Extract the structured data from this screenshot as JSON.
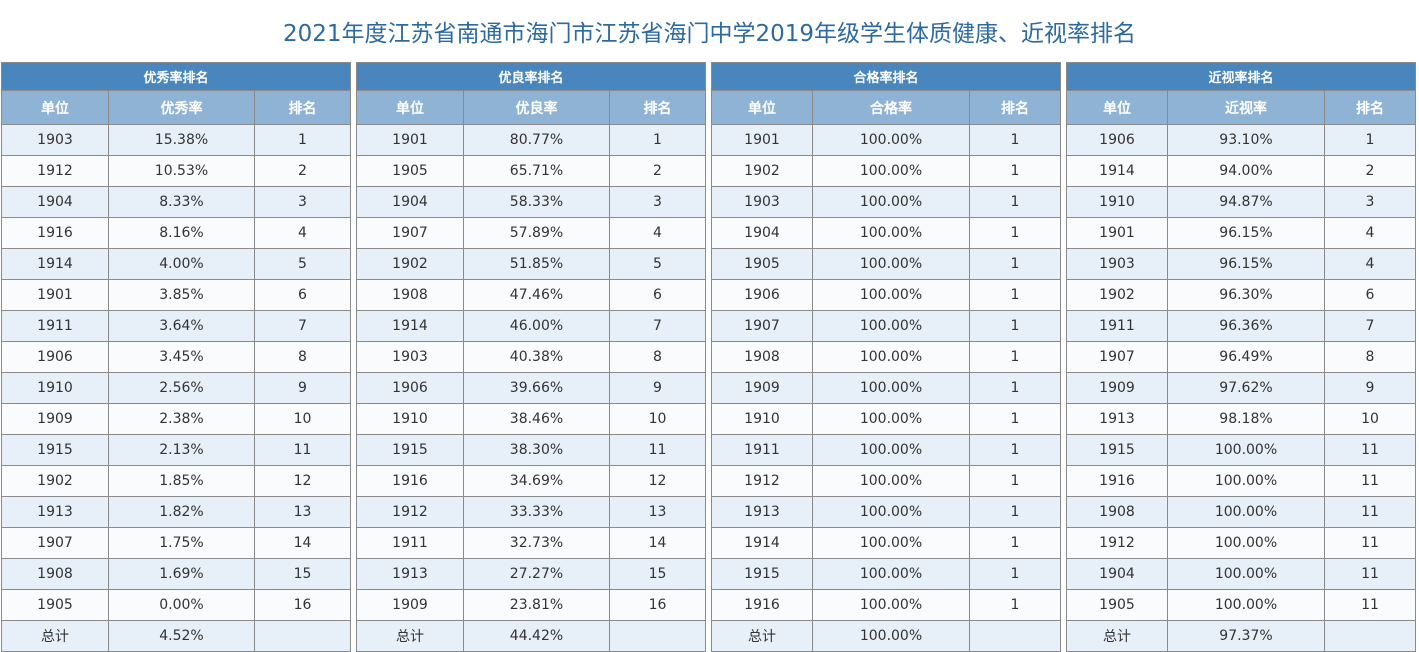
{
  "title": "2021年度江苏省南通市海门市江苏省海门中学2019年级学生体质健康、近视率排名",
  "tables": [
    {
      "name": "优秀率排名",
      "columns": [
        "单位",
        "优秀率",
        "排名"
      ],
      "rows": [
        [
          "1903",
          "15.38%",
          "1"
        ],
        [
          "1912",
          "10.53%",
          "2"
        ],
        [
          "1904",
          "8.33%",
          "3"
        ],
        [
          "1916",
          "8.16%",
          "4"
        ],
        [
          "1914",
          "4.00%",
          "5"
        ],
        [
          "1901",
          "3.85%",
          "6"
        ],
        [
          "1911",
          "3.64%",
          "7"
        ],
        [
          "1906",
          "3.45%",
          "8"
        ],
        [
          "1910",
          "2.56%",
          "9"
        ],
        [
          "1909",
          "2.38%",
          "10"
        ],
        [
          "1915",
          "2.13%",
          "11"
        ],
        [
          "1902",
          "1.85%",
          "12"
        ],
        [
          "1913",
          "1.82%",
          "13"
        ],
        [
          "1907",
          "1.75%",
          "14"
        ],
        [
          "1908",
          "1.69%",
          "15"
        ],
        [
          "1905",
          "0.00%",
          "16"
        ],
        [
          "总计",
          "4.52%",
          ""
        ]
      ]
    },
    {
      "name": "优良率排名",
      "columns": [
        "单位",
        "优良率",
        "排名"
      ],
      "rows": [
        [
          "1901",
          "80.77%",
          "1"
        ],
        [
          "1905",
          "65.71%",
          "2"
        ],
        [
          "1904",
          "58.33%",
          "3"
        ],
        [
          "1907",
          "57.89%",
          "4"
        ],
        [
          "1902",
          "51.85%",
          "5"
        ],
        [
          "1908",
          "47.46%",
          "6"
        ],
        [
          "1914",
          "46.00%",
          "7"
        ],
        [
          "1903",
          "40.38%",
          "8"
        ],
        [
          "1906",
          "39.66%",
          "9"
        ],
        [
          "1910",
          "38.46%",
          "10"
        ],
        [
          "1915",
          "38.30%",
          "11"
        ],
        [
          "1916",
          "34.69%",
          "12"
        ],
        [
          "1912",
          "33.33%",
          "13"
        ],
        [
          "1911",
          "32.73%",
          "14"
        ],
        [
          "1913",
          "27.27%",
          "15"
        ],
        [
          "1909",
          "23.81%",
          "16"
        ],
        [
          "总计",
          "44.42%",
          ""
        ]
      ]
    },
    {
      "name": "合格率排名",
      "columns": [
        "单位",
        "合格率",
        "排名"
      ],
      "rows": [
        [
          "1901",
          "100.00%",
          "1"
        ],
        [
          "1902",
          "100.00%",
          "1"
        ],
        [
          "1903",
          "100.00%",
          "1"
        ],
        [
          "1904",
          "100.00%",
          "1"
        ],
        [
          "1905",
          "100.00%",
          "1"
        ],
        [
          "1906",
          "100.00%",
          "1"
        ],
        [
          "1907",
          "100.00%",
          "1"
        ],
        [
          "1908",
          "100.00%",
          "1"
        ],
        [
          "1909",
          "100.00%",
          "1"
        ],
        [
          "1910",
          "100.00%",
          "1"
        ],
        [
          "1911",
          "100.00%",
          "1"
        ],
        [
          "1912",
          "100.00%",
          "1"
        ],
        [
          "1913",
          "100.00%",
          "1"
        ],
        [
          "1914",
          "100.00%",
          "1"
        ],
        [
          "1915",
          "100.00%",
          "1"
        ],
        [
          "1916",
          "100.00%",
          "1"
        ],
        [
          "总计",
          "100.00%",
          ""
        ]
      ]
    },
    {
      "name": "近视率排名",
      "columns": [
        "单位",
        "近视率",
        "排名"
      ],
      "rows": [
        [
          "1906",
          "93.10%",
          "1"
        ],
        [
          "1914",
          "94.00%",
          "2"
        ],
        [
          "1910",
          "94.87%",
          "3"
        ],
        [
          "1901",
          "96.15%",
          "4"
        ],
        [
          "1903",
          "96.15%",
          "4"
        ],
        [
          "1902",
          "96.30%",
          "6"
        ],
        [
          "1911",
          "96.36%",
          "7"
        ],
        [
          "1907",
          "96.49%",
          "8"
        ],
        [
          "1909",
          "97.62%",
          "9"
        ],
        [
          "1913",
          "98.18%",
          "10"
        ],
        [
          "1915",
          "100.00%",
          "11"
        ],
        [
          "1916",
          "100.00%",
          "11"
        ],
        [
          "1908",
          "100.00%",
          "11"
        ],
        [
          "1912",
          "100.00%",
          "11"
        ],
        [
          "1904",
          "100.00%",
          "11"
        ],
        [
          "1905",
          "100.00%",
          "11"
        ],
        [
          "总计",
          "97.37%",
          ""
        ]
      ]
    }
  ]
}
